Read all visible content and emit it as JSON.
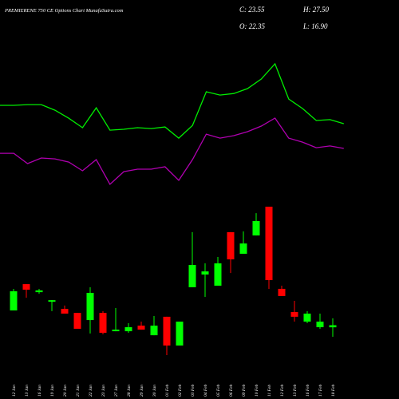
{
  "chart_data": {
    "type": "candlestick",
    "title": "PREMIERENE 750  CE Options  Chart MunafaSutra.com",
    "info": {
      "close": "C: 23.55",
      "high": "H: 27.50",
      "open": "O: 22.35",
      "low": "L: 16.90"
    },
    "categories": [
      "12 Jan",
      "13 Jan",
      "16 Jan",
      "19 Jan",
      "20 Jan",
      "21 Jan",
      "22 Jan",
      "23 Jan",
      "27 Jan",
      "28 Jan",
      "29 Jan",
      "30 Jan",
      "01 Feb",
      "02 Feb",
      "03 Feb",
      "04 Feb",
      "05 Feb",
      "06 Feb",
      "09 Feb",
      "10 Feb",
      "11 Feb",
      "12 Feb",
      "13 Feb",
      "16 Feb",
      "17 Feb",
      "18 Feb"
    ],
    "open": [
      32.0,
      47.1,
      42.5,
      37.0,
      32.9,
      30.6,
      26.5,
      30.6,
      20.1,
      20.1,
      23.3,
      17.8,
      28.4,
      11.9,
      45.3,
      52.6,
      46.2,
      76.9,
      64.5,
      75.0,
      91.5,
      44.4,
      31.1,
      25.6,
      22.4,
      22.35
    ],
    "high": [
      44.4,
      47.1,
      44.4,
      38.0,
      34.8,
      30.6,
      45.3,
      31.6,
      33.4,
      24.7,
      25.6,
      28.8,
      28.4,
      25.6,
      76.9,
      59.0,
      62.7,
      76.9,
      77.3,
      87.8,
      91.5,
      46.2,
      37.5,
      31.6,
      30.2,
      27.5
    ],
    "low": [
      32.0,
      39.3,
      41.6,
      31.6,
      30.2,
      21.5,
      18.8,
      18.3,
      20.1,
      19.2,
      21.0,
      17.8,
      6.4,
      11.9,
      45.3,
      39.8,
      46.2,
      53.5,
      64.5,
      75.0,
      44.4,
      40.3,
      25.6,
      24.7,
      21.5,
      16.9
    ],
    "close": [
      43.0,
      43.9,
      43.5,
      37.9,
      30.2,
      21.5,
      42.1,
      19.2,
      21.0,
      22.4,
      21.0,
      23.3,
      11.9,
      25.6,
      58.1,
      54.4,
      59.0,
      61.3,
      70.4,
      83.3,
      49.4,
      40.3,
      28.4,
      30.2,
      25.6,
      23.55
    ],
    "up_color": "#00ff00",
    "down_color": "#ff0000",
    "overlays": [
      {
        "color": "#00ee00",
        "values": [
          149.6,
          149.6,
          150.0,
          150.0,
          146.8,
          142.2,
          136.8,
          148.2,
          135.4,
          135.9,
          136.8,
          136.3,
          137.2,
          130.8,
          138.1,
          157.4,
          155.5,
          156.4,
          159.2,
          164.7,
          173.4,
          153.2,
          147.8,
          140.9,
          141.4,
          139.1
        ]
      },
      {
        "color": "#b000b0",
        "values": [
          122.1,
          122.1,
          116.2,
          119.4,
          118.9,
          117.1,
          112.1,
          118.5,
          104.3,
          111.6,
          113.0,
          113.0,
          114.4,
          106.6,
          118.5,
          133.1,
          130.8,
          132.2,
          134.5,
          137.7,
          142.3,
          130.8,
          128.5,
          125.3,
          126.3,
          124.9
        ]
      }
    ],
    "ylim": [
      0,
      210
    ]
  }
}
